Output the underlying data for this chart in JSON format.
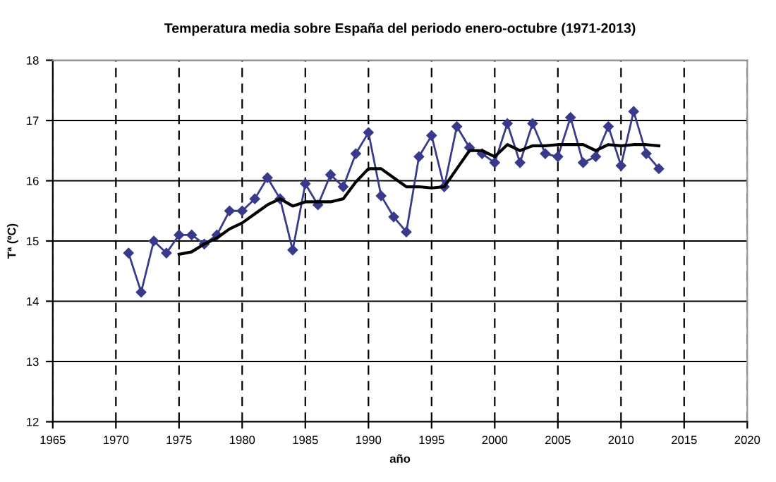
{
  "chart_data": {
    "type": "line",
    "title": "Temperatura media sobre España del periodo enero-octubre (1971-2013)",
    "xlabel": "año",
    "ylabel": "Tª (ºC)",
    "xlim": [
      1965,
      2020
    ],
    "xticks": [
      1965,
      1970,
      1975,
      1980,
      1985,
      1990,
      1995,
      2000,
      2005,
      2010,
      2015,
      2020
    ],
    "ylim": [
      12,
      18
    ],
    "yticks": [
      12,
      13,
      14,
      15,
      16,
      17,
      18
    ],
    "grid": true,
    "legend": false,
    "series": [
      {
        "color": "#3a3a8c",
        "marker": "diamond",
        "x": [
          1971,
          1972,
          1973,
          1974,
          1975,
          1976,
          1977,
          1978,
          1979,
          1980,
          1981,
          1982,
          1983,
          1984,
          1985,
          1986,
          1987,
          1988,
          1989,
          1990,
          1991,
          1992,
          1993,
          1994,
          1995,
          1996,
          1997,
          1998,
          1999,
          2000,
          2001,
          2002,
          2003,
          2004,
          2005,
          2006,
          2007,
          2008,
          2009,
          2010,
          2011,
          2012,
          2013
        ],
        "values": [
          14.8,
          14.15,
          15.0,
          14.8,
          15.1,
          15.1,
          14.95,
          15.1,
          15.5,
          15.5,
          15.7,
          16.05,
          15.7,
          14.85,
          15.95,
          15.6,
          16.1,
          15.9,
          16.45,
          16.8,
          15.75,
          15.4,
          15.15,
          16.4,
          16.75,
          15.9,
          16.9,
          16.55,
          16.45,
          16.3,
          16.95,
          16.3,
          16.95,
          16.45,
          16.4,
          17.05,
          16.3,
          16.4,
          16.9,
          16.25,
          17.15,
          16.45,
          16.2
        ]
      },
      {
        "color": "#000000",
        "marker": "none",
        "x": [
          1975,
          1976,
          1977,
          1978,
          1979,
          1980,
          1981,
          1982,
          1983,
          1984,
          1985,
          1986,
          1987,
          1988,
          1989,
          1990,
          1991,
          1992,
          1993,
          1994,
          1995,
          1996,
          1997,
          1998,
          1999,
          2000,
          2001,
          2002,
          2003,
          2004,
          2005,
          2006,
          2007,
          2008,
          2009,
          2010,
          2011,
          2012,
          2013
        ],
        "values": [
          14.78,
          14.82,
          14.95,
          15.05,
          15.2,
          15.3,
          15.45,
          15.6,
          15.7,
          15.58,
          15.65,
          15.65,
          15.65,
          15.7,
          15.98,
          16.2,
          16.2,
          16.05,
          15.9,
          15.9,
          15.88,
          15.9,
          16.2,
          16.5,
          16.5,
          16.4,
          16.6,
          16.5,
          16.58,
          16.58,
          16.6,
          16.6,
          16.6,
          16.5,
          16.6,
          16.58,
          16.6,
          16.6,
          16.58
        ]
      }
    ]
  }
}
